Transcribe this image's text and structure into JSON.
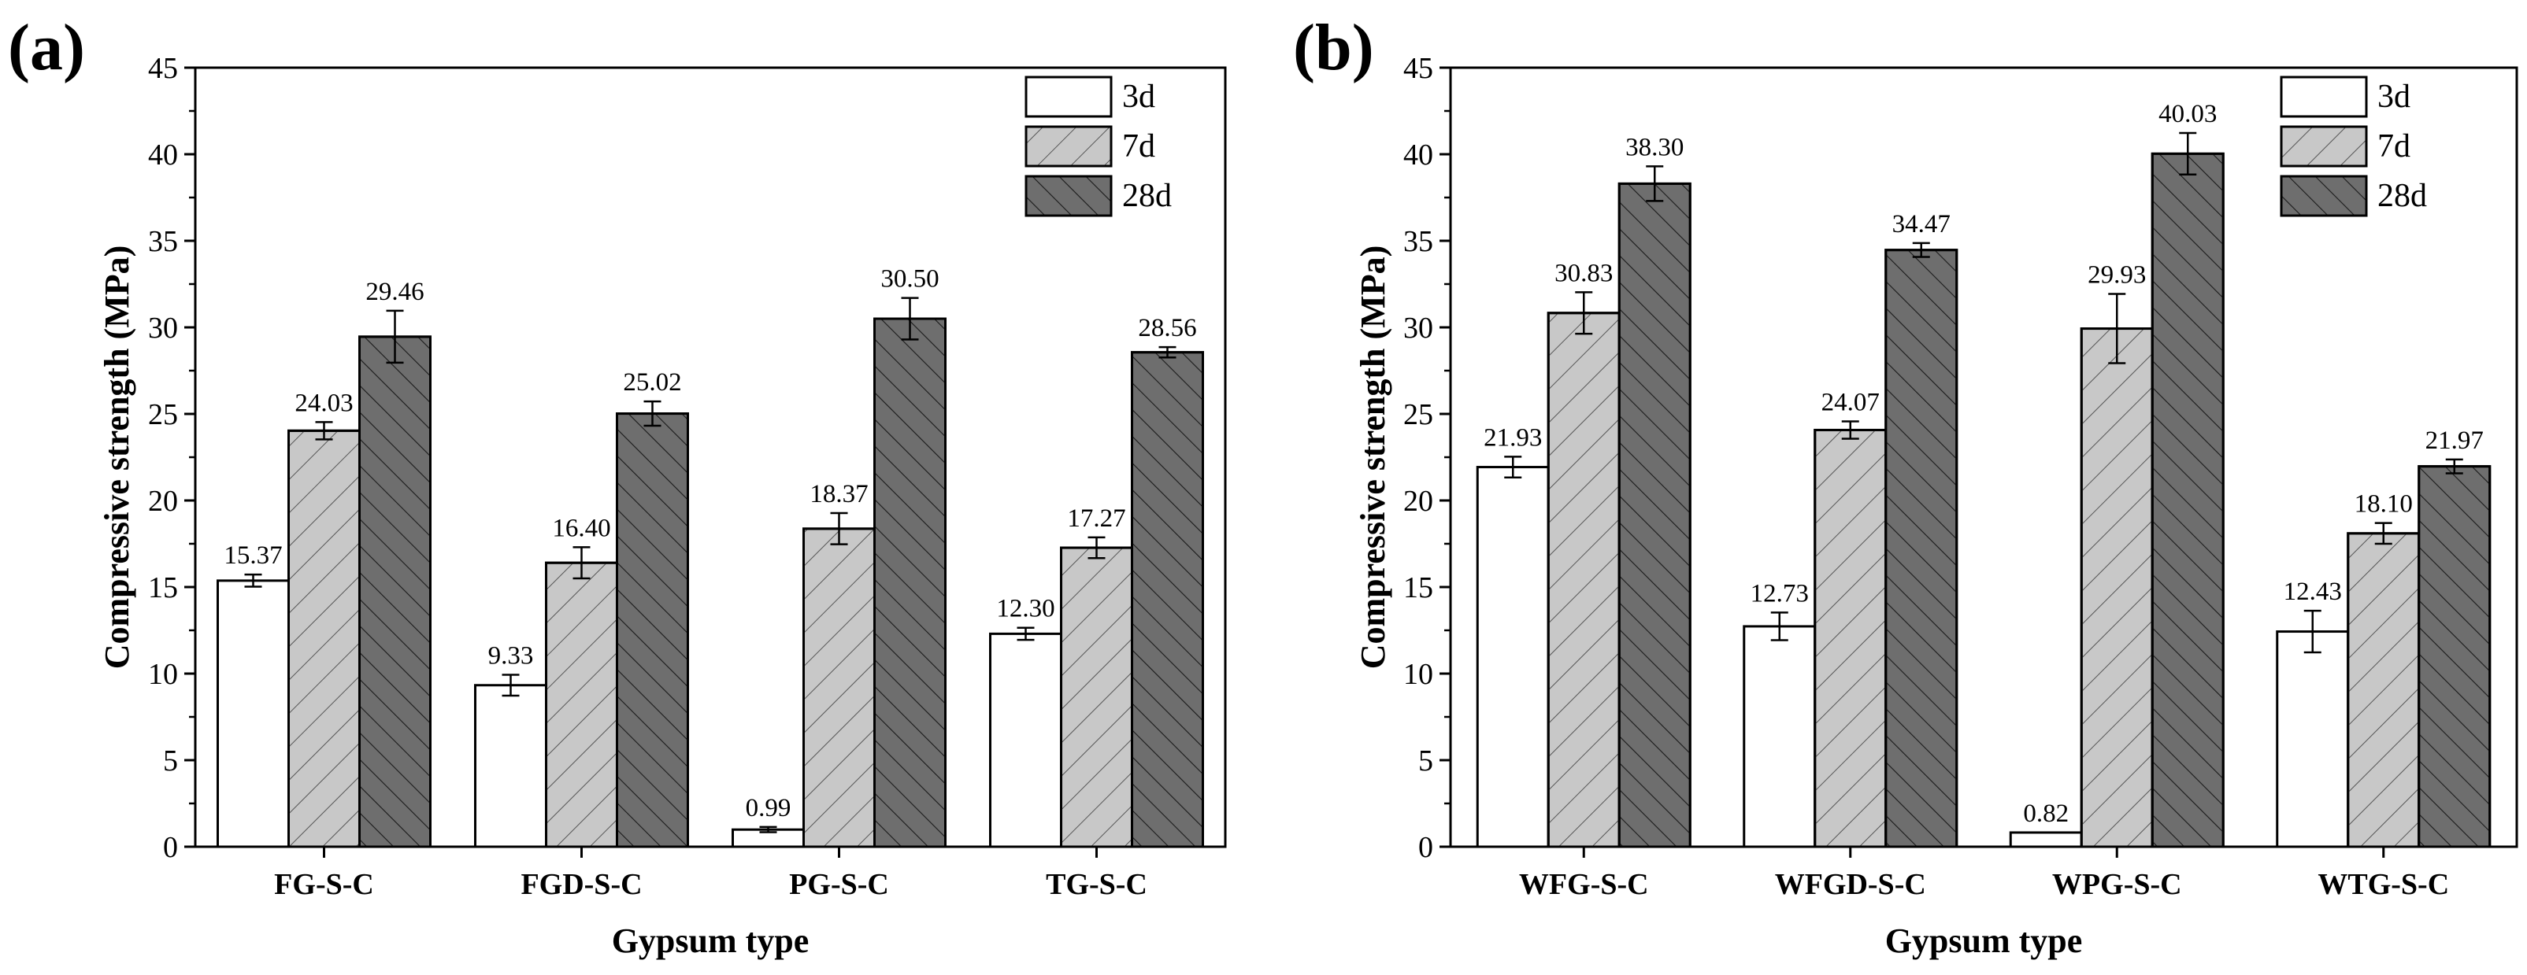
{
  "chart_data": [
    {
      "type": "bar",
      "panel_label": "(a)",
      "xlabel": "Gypsum type",
      "ylabel": "Compressive strength (MPa)",
      "ylim": [
        0,
        45
      ],
      "yticks": [
        "0",
        "5",
        "10",
        "15",
        "20",
        "25",
        "30",
        "35",
        "40",
        "45"
      ],
      "legend_position": "top-right",
      "categories": [
        "FG-S-C",
        "FGD-S-C",
        "PG-S-C",
        "TG-S-C"
      ],
      "series": [
        {
          "name": "3d",
          "values": [
            15.37,
            9.33,
            0.99,
            12.3
          ],
          "labels": [
            "15.37",
            "9.33",
            "0.99",
            "12.30"
          ],
          "errors": [
            0.35,
            0.6,
            0.15,
            0.35
          ],
          "fill": "#ffffff",
          "hatch": "none"
        },
        {
          "name": "7d",
          "values": [
            24.03,
            16.4,
            18.37,
            17.27
          ],
          "labels": [
            "24.03",
            "16.40",
            "18.37",
            "17.27"
          ],
          "errors": [
            0.5,
            0.9,
            0.9,
            0.6
          ],
          "fill": "#c8c8c8",
          "hatch": "forward"
        },
        {
          "name": "28d",
          "values": [
            29.46,
            25.02,
            30.5,
            28.56
          ],
          "labels": [
            "29.46",
            "25.02",
            "30.50",
            "28.56"
          ],
          "errors": [
            1.5,
            0.7,
            1.2,
            0.3
          ],
          "fill": "#6e6e6e",
          "hatch": "back"
        }
      ]
    },
    {
      "type": "bar",
      "panel_label": "(b)",
      "xlabel": "Gypsum type",
      "ylabel": "Compressive strength (MPa)",
      "ylim": [
        0,
        45
      ],
      "yticks": [
        "0",
        "5",
        "10",
        "15",
        "20",
        "25",
        "30",
        "35",
        "40",
        "45"
      ],
      "legend_position": "top-right",
      "categories": [
        "WFG-S-C",
        "WFGD-S-C",
        "WPG-S-C",
        "WTG-S-C"
      ],
      "series": [
        {
          "name": "3d",
          "values": [
            21.93,
            12.73,
            0.82,
            12.43
          ],
          "labels": [
            "21.93",
            "12.73",
            "0.82",
            "12.43"
          ],
          "errors": [
            0.6,
            0.8,
            0,
            1.2
          ],
          "fill": "#ffffff",
          "hatch": "none"
        },
        {
          "name": "7d",
          "values": [
            30.83,
            24.07,
            29.93,
            18.1
          ],
          "labels": [
            "30.83",
            "24.07",
            "29.93",
            "18.10"
          ],
          "errors": [
            1.2,
            0.5,
            2.0,
            0.6
          ],
          "fill": "#c8c8c8",
          "hatch": "forward"
        },
        {
          "name": "28d",
          "values": [
            38.3,
            34.47,
            40.03,
            21.97
          ],
          "labels": [
            "38.30",
            "34.47",
            "40.03",
            "21.97"
          ],
          "errors": [
            1.0,
            0.4,
            1.2,
            0.4
          ],
          "fill": "#6e6e6e",
          "hatch": "back"
        }
      ]
    }
  ]
}
